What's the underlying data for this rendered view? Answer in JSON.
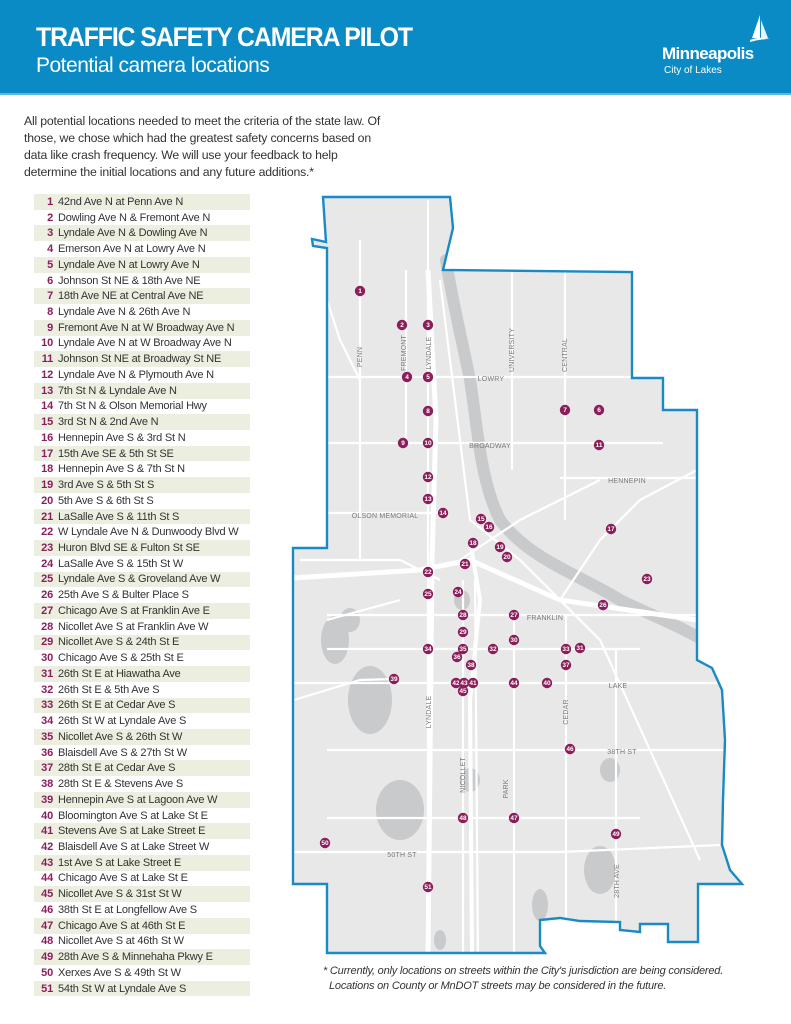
{
  "header": {
    "title": "TRAFFIC SAFETY CAMERA PILOT",
    "subtitle": "Potential camera locations",
    "logo_name": "Minneapolis",
    "logo_tagline": "City of Lakes",
    "background_color": "#0b8bc6"
  },
  "intro": "All potential locations needed to meet the criteria of the state law. Of those, we chose which had the greatest safety concerns based on data like crash frequency. We will use your feedback to help determine the initial locations and any future additions.*",
  "locations": [
    {
      "num": "1",
      "name": "42nd Ave N at Penn Ave N"
    },
    {
      "num": "2",
      "name": "Dowling Ave N & Fremont Ave N"
    },
    {
      "num": "3",
      "name": "Lyndale Ave N & Dowling Ave N"
    },
    {
      "num": "4",
      "name": "Emerson Ave N at Lowry Ave N"
    },
    {
      "num": "5",
      "name": "Lyndale Ave N at Lowry Ave N"
    },
    {
      "num": "6",
      "name": "Johnson St NE & 18th Ave NE"
    },
    {
      "num": "7",
      "name": "18th Ave NE at Central Ave NE"
    },
    {
      "num": "8",
      "name": "Lyndale Ave N & 26th Ave N"
    },
    {
      "num": "9",
      "name": "Fremont Ave N at W Broadway Ave N"
    },
    {
      "num": "10",
      "name": "Lyndale Ave N at W Broadway Ave N"
    },
    {
      "num": "11",
      "name": "Johnson St NE at Broadway St NE"
    },
    {
      "num": "12",
      "name": "Lyndale Ave N & Plymouth Ave N"
    },
    {
      "num": "13",
      "name": "7th St N & Lyndale Ave N"
    },
    {
      "num": "14",
      "name": "7th St N & Olson Memorial Hwy"
    },
    {
      "num": "15",
      "name": "3rd St N & 2nd Ave N"
    },
    {
      "num": "16",
      "name": "Hennepin Ave S & 3rd St N"
    },
    {
      "num": "17",
      "name": "15th Ave SE & 5th St SE"
    },
    {
      "num": "18",
      "name": "Hennepin Ave S & 7th St N"
    },
    {
      "num": "19",
      "name": "3rd Ave S & 5th St S"
    },
    {
      "num": "20",
      "name": "5th Ave S & 6th St S"
    },
    {
      "num": "21",
      "name": "LaSalle Ave S & 11th St S"
    },
    {
      "num": "22",
      "name": "W Lyndale Ave N & Dunwoody Blvd W"
    },
    {
      "num": "23",
      "name": "Huron Blvd SE & Fulton St SE"
    },
    {
      "num": "24",
      "name": "LaSalle Ave S & 15th St W"
    },
    {
      "num": "25",
      "name": "Lyndale Ave S & Groveland Ave W"
    },
    {
      "num": "26",
      "name": "25th Ave S & Bulter Place S"
    },
    {
      "num": "27",
      "name": "Chicago Ave S at Franklin Ave E"
    },
    {
      "num": "28",
      "name": "Nicollet Ave S at Franklin Ave W"
    },
    {
      "num": "29",
      "name": "Nicollet Ave S & 24th St E"
    },
    {
      "num": "30",
      "name": "Chicago Ave S & 25th St E"
    },
    {
      "num": "31",
      "name": "26th St E at Hiawatha Ave"
    },
    {
      "num": "32",
      "name": "26th St E & 5th Ave S"
    },
    {
      "num": "33",
      "name": "26th St E at Cedar Ave S"
    },
    {
      "num": "34",
      "name": "26th St W at Lyndale Ave S"
    },
    {
      "num": "35",
      "name": "Nicollet Ave S & 26th St W"
    },
    {
      "num": "36",
      "name": "Blaisdell Ave S & 27th St W"
    },
    {
      "num": "37",
      "name": "28th St E at Cedar Ave S"
    },
    {
      "num": "38",
      "name": "28th St E & Stevens Ave S"
    },
    {
      "num": "39",
      "name": "Hennepin Ave S at Lagoon Ave W"
    },
    {
      "num": "40",
      "name": "Bloomington Ave S at Lake St E"
    },
    {
      "num": "41",
      "name": "Stevens Ave S at Lake Street E"
    },
    {
      "num": "42",
      "name": "Blaisdell Ave S at Lake Street W"
    },
    {
      "num": "43",
      "name": "1st Ave S at Lake Street E"
    },
    {
      "num": "44",
      "name": "Chicago Ave S at Lake St E"
    },
    {
      "num": "45",
      "name": "Nicollet Ave S & 31st St W"
    },
    {
      "num": "46",
      "name": "38th St E at Longfellow Ave S"
    },
    {
      "num": "47",
      "name": "Chicago Ave S at 46th St E"
    },
    {
      "num": "48",
      "name": "Nicollet Ave S at 46th St W"
    },
    {
      "num": "49",
      "name": "28th Ave S & Minnehaha Pkwy E"
    },
    {
      "num": "50",
      "name": "Xerxes Ave S & 49th St W"
    },
    {
      "num": "51",
      "name": "54th St W at Lyndale Ave S"
    }
  ],
  "map": {
    "street_labels": {
      "penn": "PENN",
      "fremont": "FREMONT",
      "lyndale_n": "LYNDALE",
      "university": "UNIVERSITY",
      "central": "CENTRAL",
      "lowry": "LOWRY",
      "broadway": "BROADWAY",
      "hennepin": "HENNEPIN",
      "olson": "OLSON MEMORIAL",
      "franklin": "FRANKLIN",
      "lake": "LAKE",
      "lyndale_s": "LYNDALE",
      "cedar": "CEDAR",
      "street_38th": "38TH ST",
      "nicollet": "NICOLLET",
      "park": "PARK",
      "street_50th": "50TH ST",
      "ave_28th": "28TH AVE"
    },
    "boundary_color": "#1a8ac4",
    "marker_color": "#8b1e5a",
    "land_color": "#e8e8e9",
    "water_color": "#c9cacc"
  },
  "footnote": {
    "line1": "* Currently, only locations on streets within the City's jurisdiction are being considered.",
    "line2": "Locations on County or MnDOT streets may be considered in the future."
  }
}
